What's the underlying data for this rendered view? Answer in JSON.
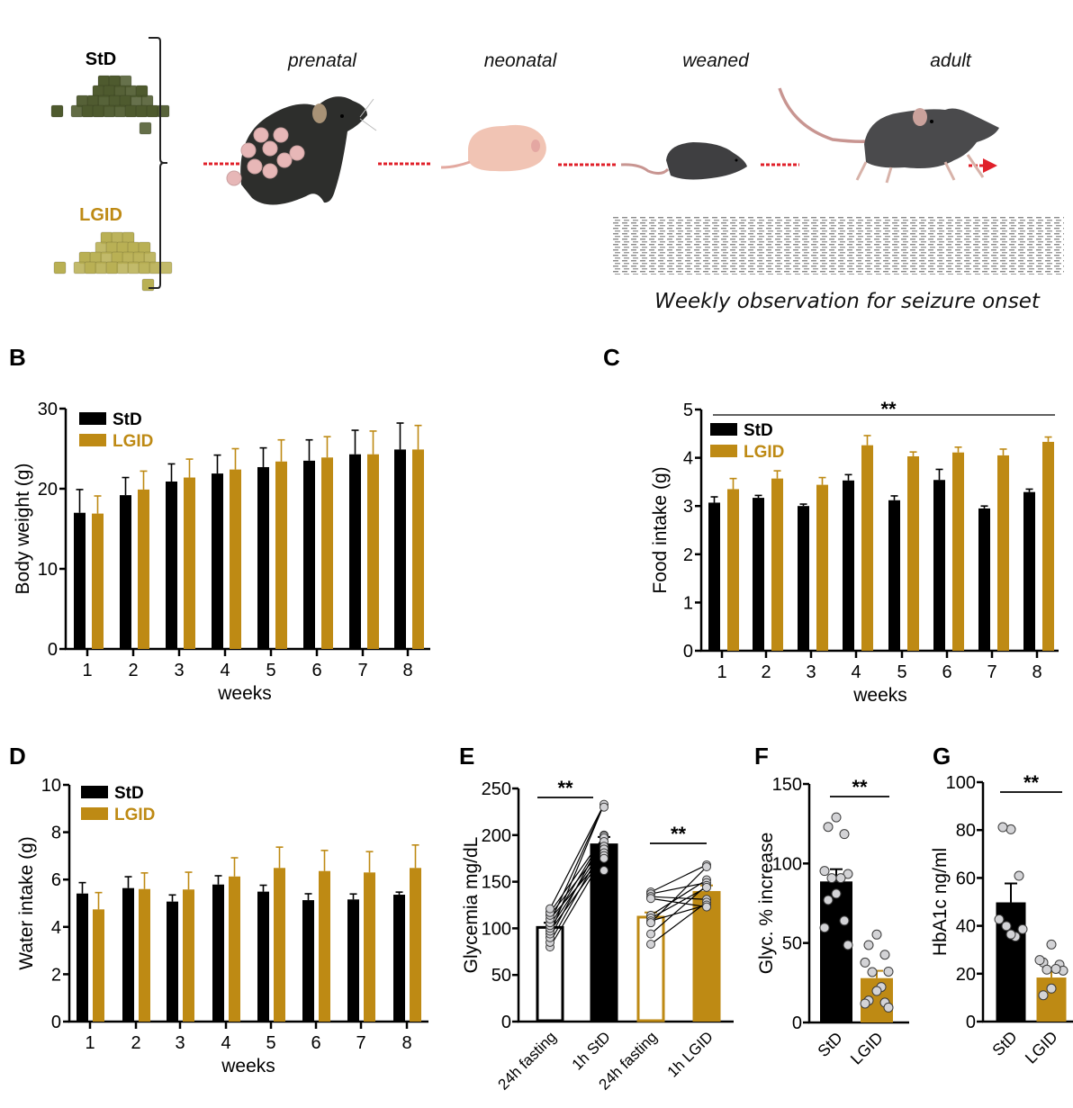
{
  "colors": {
    "std": "#000000",
    "lgid": "#BE8A14",
    "point_fill": "#D3D3D6",
    "arrow": "#E0202A",
    "std_pellet": "#4E5A2E",
    "lgid_pellet": "#B9B054",
    "mouse_dark": "#3F3F41",
    "mouse_pink": "#F1C4B4",
    "tail": "#C89591"
  },
  "schematic": {
    "diets": [
      {
        "label": "StD",
        "color_key": "std"
      },
      {
        "label": "LGID",
        "color_key": "lgid"
      }
    ],
    "stages": [
      "prenatal",
      "neonatal",
      "weaned",
      "adult"
    ],
    "observation_caption": "Weekly observation for seizure onset"
  },
  "panels": {
    "B": "B",
    "C": "C",
    "D": "D",
    "E": "E",
    "F": "F",
    "G": "G"
  },
  "chart_data": [
    {
      "id": "B",
      "type": "bar",
      "title": "",
      "xlabel": "weeks",
      "ylabel": "Body weight (g)",
      "ylim": [
        0,
        30
      ],
      "yticks": [
        0,
        10,
        20,
        30
      ],
      "categories": [
        "1",
        "2",
        "3",
        "4",
        "5",
        "6",
        "7",
        "8"
      ],
      "legend": {
        "position": "top-left",
        "entries": [
          "StD",
          "LGID"
        ]
      },
      "series": [
        {
          "name": "StD",
          "values": [
            17.0,
            19.2,
            20.9,
            21.9,
            22.7,
            23.5,
            24.3,
            24.9
          ],
          "error_top": [
            19.9,
            21.4,
            23.1,
            24.2,
            25.1,
            26.1,
            27.3,
            28.2
          ]
        },
        {
          "name": "LGID",
          "values": [
            16.9,
            19.9,
            21.4,
            22.4,
            23.4,
            23.9,
            24.3,
            24.9
          ],
          "error_top": [
            19.1,
            22.2,
            23.7,
            25.0,
            26.1,
            26.5,
            27.2,
            27.9
          ]
        }
      ]
    },
    {
      "id": "C",
      "type": "bar",
      "title": "",
      "xlabel": "weeks",
      "ylabel": "Food intake (g)",
      "ylim": [
        0,
        5
      ],
      "yticks": [
        0,
        1,
        2,
        3,
        4,
        5
      ],
      "categories": [
        "1",
        "2",
        "3",
        "4",
        "5",
        "6",
        "7",
        "8"
      ],
      "legend": {
        "position": "top-left",
        "entries": [
          "StD",
          "LGID"
        ]
      },
      "annotation": "**",
      "series": [
        {
          "name": "StD",
          "values": [
            3.07,
            3.17,
            3.0,
            3.53,
            3.12,
            3.54,
            2.95,
            3.29
          ],
          "error_top": [
            3.19,
            3.22,
            3.04,
            3.65,
            3.21,
            3.76,
            3.0,
            3.35
          ]
        },
        {
          "name": "LGID",
          "values": [
            3.35,
            3.57,
            3.44,
            4.26,
            4.03,
            4.11,
            4.05,
            4.33
          ],
          "error_top": [
            3.57,
            3.73,
            3.59,
            4.46,
            4.12,
            4.22,
            4.18,
            4.43
          ]
        }
      ]
    },
    {
      "id": "D",
      "type": "bar",
      "title": "",
      "xlabel": "weeks",
      "ylabel": "Water intake (g)",
      "ylim": [
        0,
        10
      ],
      "yticks": [
        0,
        2,
        4,
        6,
        8,
        10
      ],
      "categories": [
        "1",
        "2",
        "3",
        "4",
        "5",
        "6",
        "7",
        "8"
      ],
      "legend": {
        "position": "top-left",
        "entries": [
          "StD",
          "LGID"
        ]
      },
      "series": [
        {
          "name": "StD",
          "values": [
            5.41,
            5.64,
            5.07,
            5.79,
            5.49,
            5.13,
            5.16,
            5.36
          ],
          "error_top": [
            5.87,
            6.12,
            5.35,
            6.16,
            5.76,
            5.4,
            5.39,
            5.47
          ]
        },
        {
          "name": "LGID",
          "values": [
            4.74,
            5.6,
            5.58,
            6.13,
            6.49,
            6.36,
            6.3,
            6.49
          ],
          "error_top": [
            5.45,
            6.28,
            6.31,
            6.92,
            7.37,
            7.23,
            7.18,
            7.46
          ]
        }
      ]
    },
    {
      "id": "E",
      "type": "bar",
      "title": "",
      "xlabel": "",
      "ylabel": "Glycemia mg/dL",
      "ylim": [
        0,
        250
      ],
      "yticks": [
        0,
        50,
        100,
        150,
        200,
        250
      ],
      "categories": [
        "24h fasting",
        "1h StD",
        "24h fasting",
        "1h LGID"
      ],
      "bars": [
        {
          "group": "StD",
          "style": "open",
          "value": 101,
          "error_top": 106,
          "points": [
            80,
            85,
            90,
            94,
            97,
            100,
            103,
            106,
            110,
            114,
            117,
            121
          ]
        },
        {
          "group": "StD",
          "style": "filled",
          "value": 191,
          "error_top": 198,
          "points": [
            233,
            230,
            200,
            199,
            197,
            193,
            188,
            185,
            181,
            178,
            175,
            162
          ]
        },
        {
          "group": "LGID",
          "style": "open",
          "value": 112,
          "error_top": 117,
          "points": [
            139,
            137,
            134,
            132,
            114,
            111,
            108,
            106,
            94,
            83
          ]
        },
        {
          "group": "LGID",
          "style": "filled",
          "value": 140,
          "error_top": 146,
          "points": [
            168,
            166,
            152,
            149,
            146,
            144,
            131,
            128,
            125,
            123
          ]
        }
      ],
      "paired_lines": [
        {
          "from_bar": 0,
          "to_bar": 1
        },
        {
          "from_bar": 2,
          "to_bar": 3
        }
      ],
      "annotations": [
        {
          "text": "**",
          "between": [
            "24h fasting",
            "1h StD"
          ]
        },
        {
          "text": "**",
          "between": [
            "24h fasting",
            "1h LGID"
          ]
        }
      ]
    },
    {
      "id": "F",
      "type": "bar",
      "title": "",
      "xlabel": "",
      "ylabel": "Glyc. % increase",
      "ylim": [
        0,
        150
      ],
      "yticks": [
        0,
        50,
        100,
        150
      ],
      "categories": [
        "StD",
        "LGID"
      ],
      "bars": [
        {
          "group": "StD",
          "value": 88.7,
          "error_top": 96.4,
          "points": [
            129,
            123,
            118.5,
            95.3,
            93.4,
            90.8,
            90.8,
            81,
            77,
            64,
            59.6,
            48.7
          ]
        },
        {
          "group": "LGID",
          "value": 27.9,
          "error_top": 32.5,
          "points": [
            55.3,
            48.7,
            42.6,
            37.7,
            32,
            31.7,
            22.3,
            19.8,
            13.8,
            12.5,
            11.9,
            9.4
          ]
        }
      ],
      "annotations": [
        {
          "text": "**",
          "between": [
            "StD",
            "LGID"
          ]
        }
      ]
    },
    {
      "id": "G",
      "type": "bar",
      "title": "",
      "xlabel": "",
      "ylabel": "HbA1c ng/ml",
      "ylim": [
        0,
        100
      ],
      "yticks": [
        0,
        20,
        40,
        60,
        80,
        100
      ],
      "categories": [
        "StD",
        "LGID"
      ],
      "bars": [
        {
          "group": "StD",
          "value": 49.8,
          "error_top": 57.7,
          "points": [
            80.3,
            81.2,
            60.9,
            42.7,
            38.6,
            39.9,
            35.5,
            36.4
          ]
        },
        {
          "group": "LGID",
          "value": 18.4,
          "error_top": 21.8,
          "points": [
            32.2,
            24.7,
            23.8,
            25.7,
            21.3,
            21.7,
            22.0,
            13.8,
            11.0
          ]
        }
      ],
      "annotations": [
        {
          "text": "**",
          "between": [
            "StD",
            "LGID"
          ]
        }
      ]
    }
  ]
}
